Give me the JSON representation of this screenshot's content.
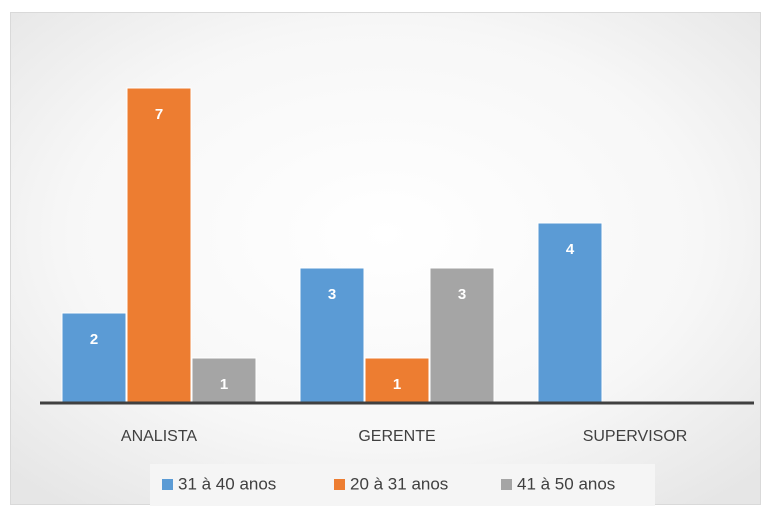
{
  "chart_data": {
    "type": "bar",
    "categories": [
      "ANALISTA",
      "GERENTE",
      "SUPERVISOR"
    ],
    "series": [
      {
        "name": "31 à 40 anos",
        "color": "#5b9bd5",
        "values": [
          2,
          3,
          4
        ]
      },
      {
        "name": "20 à 31 anos",
        "color": "#ed7d31",
        "values": [
          7,
          1,
          null
        ]
      },
      {
        "name": "41 à 50 anos",
        "color": "#a5a5a5",
        "values": [
          1,
          3,
          null
        ]
      }
    ],
    "legend": "bottom"
  }
}
